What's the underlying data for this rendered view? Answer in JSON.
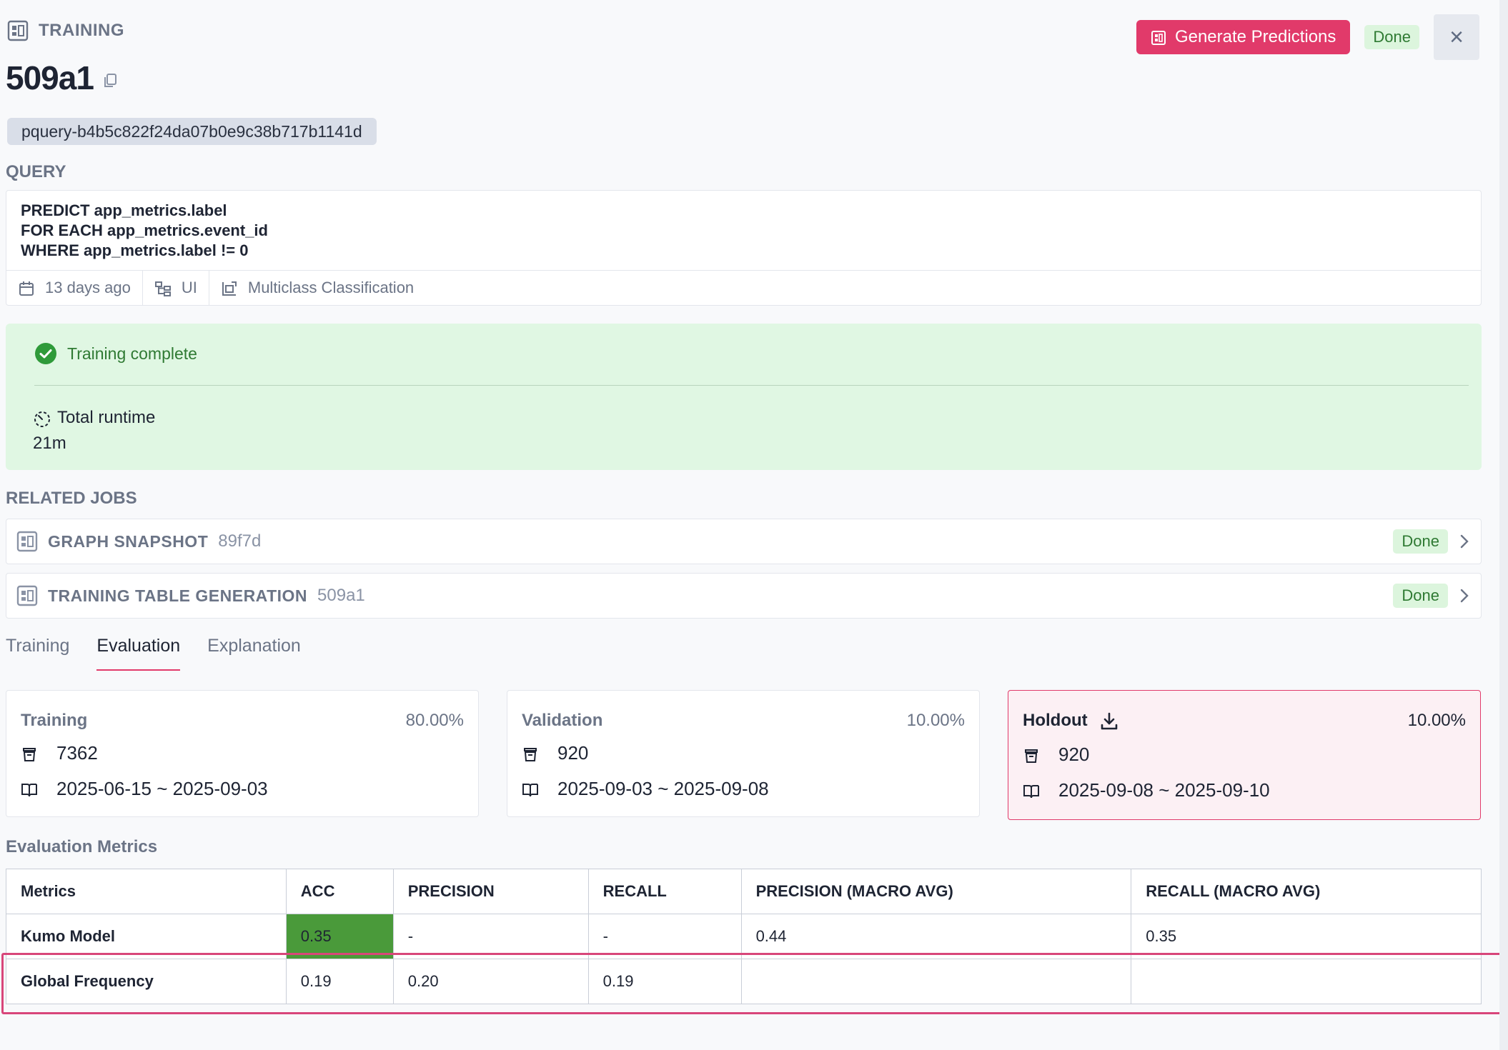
{
  "header": {
    "job_type": "TRAINING",
    "generate_label": "Generate Predictions",
    "status": "Done",
    "close_glyph": "×"
  },
  "job_id": "509a1",
  "pquery_id": "pquery-b4b5c822f24da07b0e9c38b717b1141d",
  "query": {
    "section_label": "QUERY",
    "lines": [
      "PREDICT app_metrics.label",
      "FOR EACH app_metrics.event_id",
      "WHERE app_metrics.label != 0"
    ],
    "created": "13 days ago",
    "source": "UI",
    "task_type": "Multiclass Classification"
  },
  "training_status": {
    "message": "Training complete",
    "runtime_label": "Total runtime",
    "runtime_value": "21m"
  },
  "related_jobs": {
    "section_label": "RELATED JOBS",
    "items": [
      {
        "title": "GRAPH SNAPSHOT",
        "id": "89f7d",
        "status": "Done"
      },
      {
        "title": "TRAINING TABLE GENERATION",
        "id": "509a1",
        "status": "Done"
      }
    ]
  },
  "tabs": [
    {
      "label": "Training",
      "active": false
    },
    {
      "label": "Evaluation",
      "active": true
    },
    {
      "label": "Explanation",
      "active": false
    }
  ],
  "splits": [
    {
      "name": "Training",
      "pct": "80.00%",
      "rows": "7362",
      "range": "2025-06-15 ~ 2025-09-03"
    },
    {
      "name": "Validation",
      "pct": "10.00%",
      "rows": "920",
      "range": "2025-09-03 ~ 2025-09-08"
    },
    {
      "name": "Holdout",
      "pct": "10.00%",
      "rows": "920",
      "range": "2025-09-08 ~ 2025-09-10"
    }
  ],
  "metrics": {
    "section_label": "Evaluation Metrics",
    "columns": [
      "Metrics",
      "ACC",
      "PRECISION",
      "RECALL",
      "PRECISION (MACRO AVG)",
      "RECALL (MACRO AVG)"
    ],
    "rows": [
      [
        "Kumo Model",
        "0.35",
        "-",
        "-",
        "0.44",
        "0.35"
      ],
      [
        "Global Frequency",
        "0.19",
        "0.20",
        "0.19",
        "",
        ""
      ]
    ]
  },
  "colors": {
    "accent": "#e13a6a",
    "success_bg": "#e0f7e3",
    "success_text": "#2f7a33",
    "best_cell": "#4a9a3a"
  }
}
